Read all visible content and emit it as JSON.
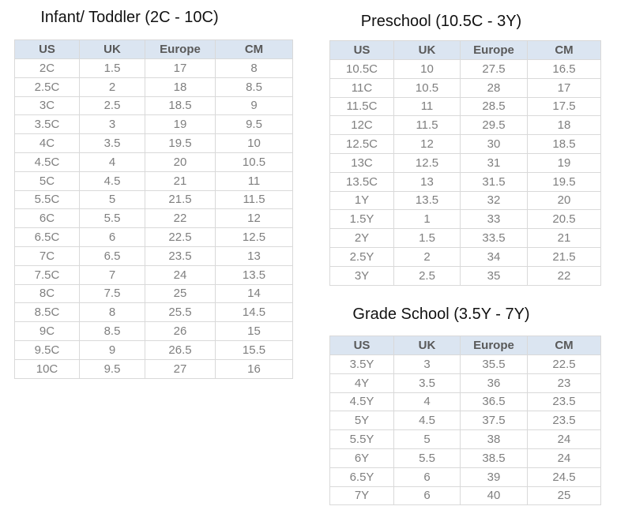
{
  "colors": {
    "header_bg": "#dbe5f1",
    "header_text": "#595959",
    "cell_text": "#7f7f7f",
    "border": "#d9d9d9",
    "title_text": "#111111",
    "page_bg": "#ffffff"
  },
  "columns": [
    "US",
    "UK",
    "Europe",
    "CM"
  ],
  "tables": [
    {
      "title": "Infant/ Toddler (2C - 10C)",
      "rows": [
        [
          "2C",
          "1.5",
          "17",
          "8"
        ],
        [
          "2.5C",
          "2",
          "18",
          "8.5"
        ],
        [
          "3C",
          "2.5",
          "18.5",
          "9"
        ],
        [
          "3.5C",
          "3",
          "19",
          "9.5"
        ],
        [
          "4C",
          "3.5",
          "19.5",
          "10"
        ],
        [
          "4.5C",
          "4",
          "20",
          "10.5"
        ],
        [
          "5C",
          "4.5",
          "21",
          "11"
        ],
        [
          "5.5C",
          "5",
          "21.5",
          "11.5"
        ],
        [
          "6C",
          "5.5",
          "22",
          "12"
        ],
        [
          "6.5C",
          "6",
          "22.5",
          "12.5"
        ],
        [
          "7C",
          "6.5",
          "23.5",
          "13"
        ],
        [
          "7.5C",
          "7",
          "24",
          "13.5"
        ],
        [
          "8C",
          "7.5",
          "25",
          "14"
        ],
        [
          "8.5C",
          "8",
          "25.5",
          "14.5"
        ],
        [
          "9C",
          "8.5",
          "26",
          "15"
        ],
        [
          "9.5C",
          "9",
          "26.5",
          "15.5"
        ],
        [
          "10C",
          "9.5",
          "27",
          "16"
        ]
      ]
    },
    {
      "title": "Preschool (10.5C - 3Y)",
      "rows": [
        [
          "10.5C",
          "10",
          "27.5",
          "16.5"
        ],
        [
          "11C",
          "10.5",
          "28",
          "17"
        ],
        [
          "11.5C",
          "11",
          "28.5",
          "17.5"
        ],
        [
          "12C",
          "11.5",
          "29.5",
          "18"
        ],
        [
          "12.5C",
          "12",
          "30",
          "18.5"
        ],
        [
          "13C",
          "12.5",
          "31",
          "19"
        ],
        [
          "13.5C",
          "13",
          "31.5",
          "19.5"
        ],
        [
          "1Y",
          "13.5",
          "32",
          "20"
        ],
        [
          "1.5Y",
          "1",
          "33",
          "20.5"
        ],
        [
          "2Y",
          "1.5",
          "33.5",
          "21"
        ],
        [
          "2.5Y",
          "2",
          "34",
          "21.5"
        ],
        [
          "3Y",
          "2.5",
          "35",
          "22"
        ]
      ]
    },
    {
      "title": "Grade School (3.5Y - 7Y)",
      "rows": [
        [
          "3.5Y",
          "3",
          "35.5",
          "22.5"
        ],
        [
          "4Y",
          "3.5",
          "36",
          "23"
        ],
        [
          "4.5Y",
          "4",
          "36.5",
          "23.5"
        ],
        [
          "5Y",
          "4.5",
          "37.5",
          "23.5"
        ],
        [
          "5.5Y",
          "5",
          "38",
          "24"
        ],
        [
          "6Y",
          "5.5",
          "38.5",
          "24"
        ],
        [
          "6.5Y",
          "6",
          "39",
          "24.5"
        ],
        [
          "7Y",
          "6",
          "40",
          "25"
        ]
      ]
    }
  ]
}
